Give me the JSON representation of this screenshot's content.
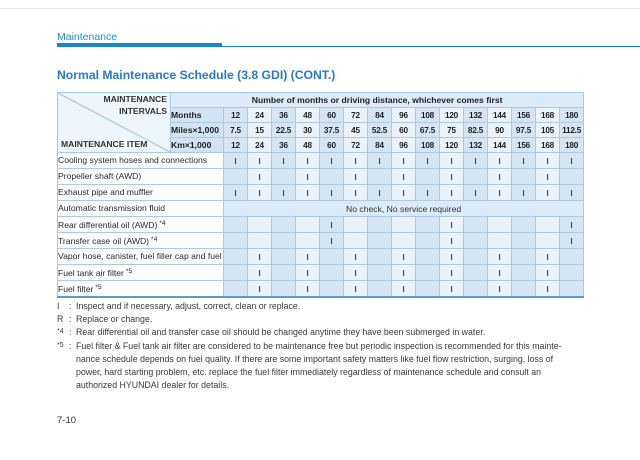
{
  "page": {
    "breadcrumb": "Maintenance",
    "page_number": "7-10"
  },
  "title": "Normal Maintenance Schedule (3.8 GDI) (CONT.)",
  "colors": {
    "accent_blue": "#1487cd",
    "title_blue": "#2a79c4",
    "table_border": "#86b6dd",
    "column_dark": "#d7e5f3",
    "column_light": "#ebf2fa",
    "header_fill": "#dcebf7"
  },
  "table": {
    "corner": {
      "top_label": "MAINTENANCE INTERVALS",
      "bottom_label": "MAINTENANCE ITEM"
    },
    "span_header": "Number of months or driving distance, whichever comes first",
    "interval_rows": [
      {
        "label": "Months",
        "values": [
          "12",
          "24",
          "36",
          "48",
          "60",
          "72",
          "84",
          "96",
          "108",
          "120",
          "132",
          "144",
          "156",
          "168",
          "180"
        ]
      },
      {
        "label": "Miles×1,000",
        "values": [
          "7.5",
          "15",
          "22.5",
          "30",
          "37.5",
          "45",
          "52.5",
          "60",
          "67.5",
          "75",
          "82.5",
          "90",
          "97.5",
          "105",
          "112.5"
        ]
      },
      {
        "label": "Km×1,000",
        "values": [
          "12",
          "24",
          "36",
          "48",
          "60",
          "72",
          "84",
          "96",
          "108",
          "120",
          "132",
          "144",
          "156",
          "168",
          "180"
        ]
      }
    ],
    "items": [
      {
        "label": "Cooling system hoses and connections",
        "marks": [
          "I",
          "I",
          "I",
          "I",
          "I",
          "I",
          "I",
          "I",
          "I",
          "I",
          "I",
          "I",
          "I",
          "I",
          "I"
        ]
      },
      {
        "label": "Propeller shaft (AWD)",
        "marks": [
          "",
          "I",
          "",
          "I",
          "",
          "I",
          "",
          "I",
          "",
          "I",
          "",
          "I",
          "",
          "I",
          ""
        ]
      },
      {
        "label": "Exhaust pipe and muffler",
        "marks": [
          "I",
          "I",
          "I",
          "I",
          "I",
          "I",
          "I",
          "I",
          "I",
          "I",
          "I",
          "I",
          "I",
          "I",
          "I"
        ]
      },
      {
        "label": "Automatic transmission fluid",
        "span_text": "No check, No service required"
      },
      {
        "label": "Rear differential oil (AWD)",
        "footnote_marker": "*4",
        "marks": [
          "",
          "",
          "",
          "",
          "I",
          "",
          "",
          "",
          "",
          "I",
          "",
          "",
          "",
          "",
          "I"
        ]
      },
      {
        "label": "Transfer case oil (AWD)",
        "footnote_marker": "*4",
        "marks": [
          "",
          "",
          "",
          "",
          "I",
          "",
          "",
          "",
          "",
          "I",
          "",
          "",
          "",
          "",
          "I"
        ]
      },
      {
        "label": "Vapor hose, canister, fuel filler cap and fuel tank",
        "marks": [
          "",
          "I",
          "",
          "I",
          "",
          "I",
          "",
          "I",
          "",
          "I",
          "",
          "I",
          "",
          "I",
          ""
        ]
      },
      {
        "label": "Fuel tank air filter",
        "footnote_marker": "*5",
        "marks": [
          "",
          "I",
          "",
          "I",
          "",
          "I",
          "",
          "I",
          "",
          "I",
          "",
          "I",
          "",
          "I",
          ""
        ]
      },
      {
        "label": "Fuel filter",
        "footnote_marker": "*5",
        "marks": [
          "",
          "I",
          "",
          "I",
          "",
          "I",
          "",
          "I",
          "",
          "I",
          "",
          "I",
          "",
          "I",
          ""
        ]
      }
    ]
  },
  "legend": [
    {
      "marker": "I",
      "text": "Inspect and if necessary, adjust, correct, clean or replace."
    },
    {
      "marker": "R",
      "text": "Replace or change."
    },
    {
      "marker": "*4",
      "text": "Rear differential oil and transfer case oil should be changed anytime they have been submerged in water."
    },
    {
      "marker": "*5",
      "lines": [
        "Fuel filter & Fuel tank air filter are considered to be maintenance free but periodic inspection is recommended for this mainte-",
        "nance schedule depends on fuel quality. If there are some important safety matters like fuel flow restriction, surging, loss of",
        "power, hard starting problem, etc. replace the fuel filter immediately regardless of maintenance schedule and consult an",
        "authorized HYUNDAI dealer for details."
      ]
    }
  ]
}
